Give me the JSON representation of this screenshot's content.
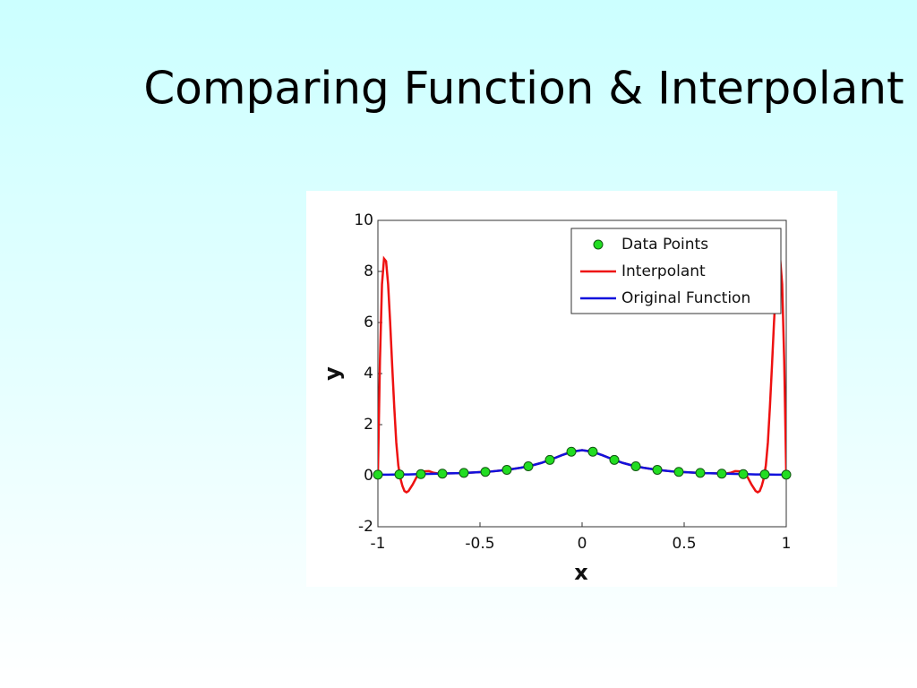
{
  "chart_data": {
    "type": "line",
    "title": "Comparing Function & Interpolant",
    "xlabel": "x",
    "ylabel": "y",
    "xlim": [
      -1,
      1
    ],
    "ylim": [
      -2,
      10
    ],
    "xticks": [
      -1,
      -0.5,
      0,
      0.5,
      1
    ],
    "yticks": [
      -2,
      0,
      2,
      4,
      6,
      8,
      10
    ],
    "legend": "upper right",
    "grid": false,
    "series": [
      {
        "name": "Data Points",
        "color": "#22dd22",
        "style": "markers",
        "x": [
          -1,
          -0.8947,
          -0.7895,
          -0.6842,
          -0.5789,
          -0.4737,
          -0.3684,
          -0.2632,
          -0.1579,
          -0.0526,
          0.0526,
          0.1579,
          0.2632,
          0.3684,
          0.4737,
          0.5789,
          0.6842,
          0.7895,
          0.8947,
          1
        ],
        "values": [
          0.04,
          0.05,
          0.06,
          0.08,
          0.11,
          0.15,
          0.23,
          0.37,
          0.62,
          0.94,
          0.94,
          0.62,
          0.37,
          0.23,
          0.15,
          0.11,
          0.08,
          0.06,
          0.05,
          0.04
        ]
      },
      {
        "name": "Interpolant",
        "color": "#ee1111",
        "style": "line",
        "x": [
          -1,
          -0.99,
          -0.98,
          -0.97,
          -0.96,
          -0.95,
          -0.94,
          -0.93,
          -0.92,
          -0.91,
          -0.9,
          -0.89,
          -0.88,
          -0.87,
          -0.86,
          -0.85,
          -0.83,
          -0.81,
          -0.79,
          -0.77,
          -0.75,
          -0.73,
          -0.7,
          -0.65,
          -0.6,
          -0.55,
          -0.5,
          -0.45,
          -0.4,
          -0.35,
          -0.3,
          -0.25,
          -0.2,
          -0.15,
          -0.1,
          -0.05,
          0,
          0.05,
          0.1,
          0.15,
          0.2,
          0.25,
          0.3,
          0.35,
          0.4,
          0.45,
          0.5,
          0.55,
          0.6,
          0.65,
          0.7,
          0.73,
          0.75,
          0.77,
          0.79,
          0.81,
          0.83,
          0.85,
          0.86,
          0.87,
          0.88,
          0.89,
          0.9,
          0.91,
          0.92,
          0.93,
          0.94,
          0.95,
          0.96,
          0.97,
          0.98,
          0.99,
          1
        ],
        "values": [
          0.04,
          4.5,
          7.5,
          8.5,
          8.4,
          7.5,
          6.0,
          4.3,
          2.7,
          1.3,
          0.4,
          -0.1,
          -0.4,
          -0.6,
          -0.65,
          -0.6,
          -0.35,
          -0.05,
          0.06,
          0.17,
          0.18,
          0.12,
          0.08,
          0.09,
          0.1,
          0.12,
          0.14,
          0.16,
          0.2,
          0.25,
          0.31,
          0.39,
          0.5,
          0.64,
          0.8,
          0.94,
          1,
          0.94,
          0.8,
          0.64,
          0.5,
          0.39,
          0.31,
          0.25,
          0.2,
          0.16,
          0.14,
          0.12,
          0.1,
          0.09,
          0.08,
          0.12,
          0.18,
          0.17,
          0.06,
          -0.05,
          -0.35,
          -0.6,
          -0.65,
          -0.6,
          -0.4,
          -0.1,
          0.4,
          1.3,
          2.7,
          4.3,
          6.0,
          7.5,
          8.4,
          8.5,
          7.5,
          4.5,
          0.04
        ]
      },
      {
        "name": "Original Function",
        "color": "#1111dd",
        "style": "line",
        "x": [
          -1,
          -0.95,
          -0.9,
          -0.85,
          -0.8,
          -0.75,
          -0.7,
          -0.65,
          -0.6,
          -0.55,
          -0.5,
          -0.45,
          -0.4,
          -0.35,
          -0.3,
          -0.25,
          -0.2,
          -0.15,
          -0.1,
          -0.05,
          0,
          0.05,
          0.1,
          0.15,
          0.2,
          0.25,
          0.3,
          0.35,
          0.4,
          0.45,
          0.5,
          0.55,
          0.6,
          0.65,
          0.7,
          0.75,
          0.8,
          0.85,
          0.9,
          0.95,
          1
        ],
        "values": [
          0.04,
          0.04,
          0.05,
          0.05,
          0.06,
          0.07,
          0.08,
          0.09,
          0.1,
          0.12,
          0.14,
          0.16,
          0.2,
          0.25,
          0.31,
          0.39,
          0.5,
          0.64,
          0.8,
          0.94,
          1,
          0.94,
          0.8,
          0.64,
          0.5,
          0.39,
          0.31,
          0.25,
          0.2,
          0.16,
          0.14,
          0.12,
          0.1,
          0.09,
          0.08,
          0.07,
          0.06,
          0.05,
          0.05,
          0.04,
          0.04
        ]
      }
    ]
  }
}
